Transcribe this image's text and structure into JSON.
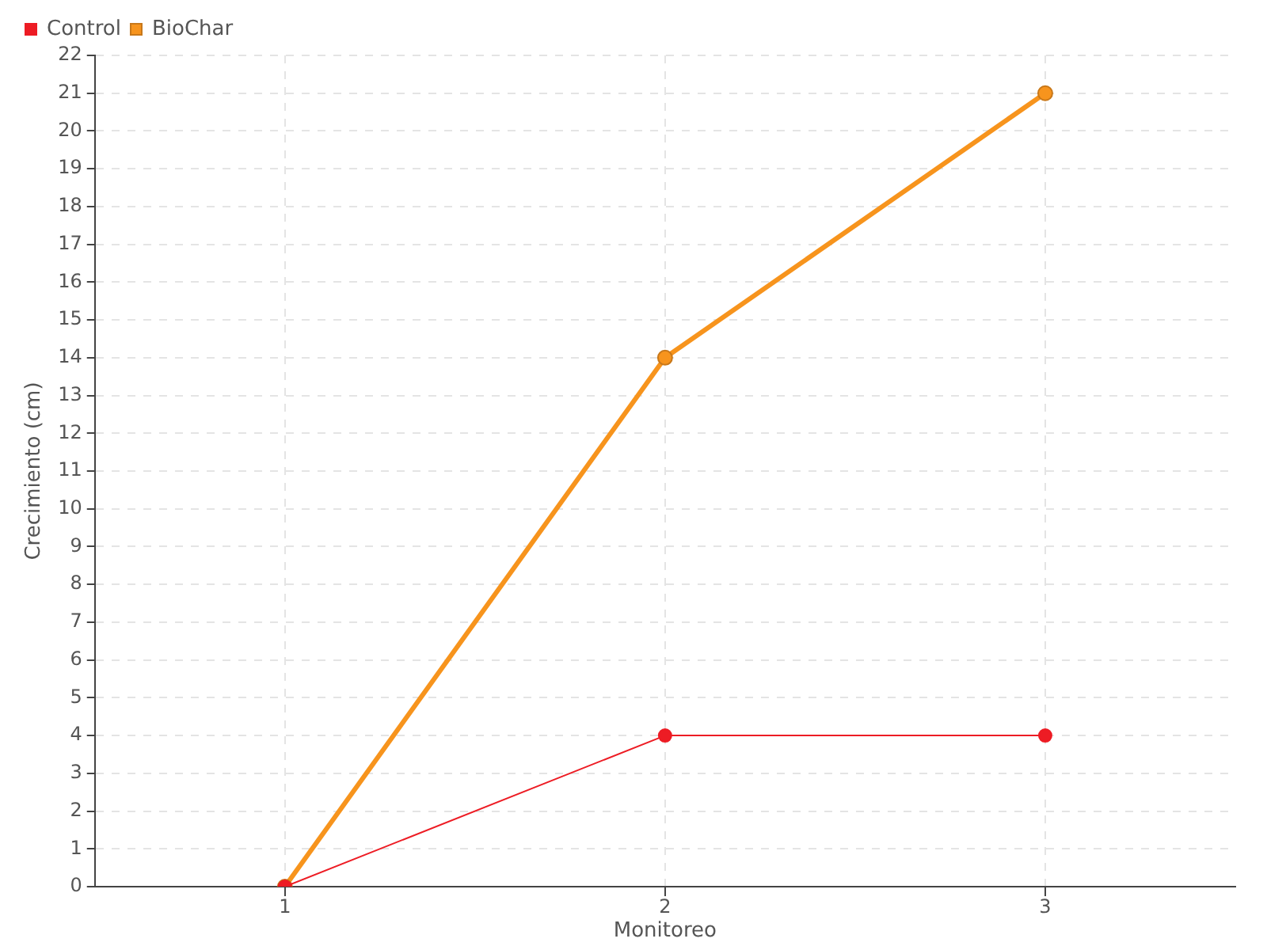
{
  "chart_data": {
    "type": "line",
    "xlabel": "Monitoreo",
    "ylabel": "Crecimiento (cm)",
    "categories": [
      "1",
      "2",
      "3"
    ],
    "series": [
      {
        "name": "BioChar",
        "color": "#f7941d",
        "values": [
          0,
          14,
          21
        ]
      },
      {
        "name": "Control",
        "color": "#ed1c24",
        "values": [
          0,
          4,
          4
        ]
      }
    ],
    "ylim": [
      0,
      22
    ],
    "yticks": [
      0,
      1,
      2,
      3,
      4,
      5,
      6,
      7,
      8,
      9,
      10,
      11,
      12,
      13,
      14,
      15,
      16,
      17,
      18,
      19,
      20,
      21,
      22
    ],
    "grid": true,
    "legend": "top left",
    "marker": "circle",
    "line_style": "solid"
  }
}
